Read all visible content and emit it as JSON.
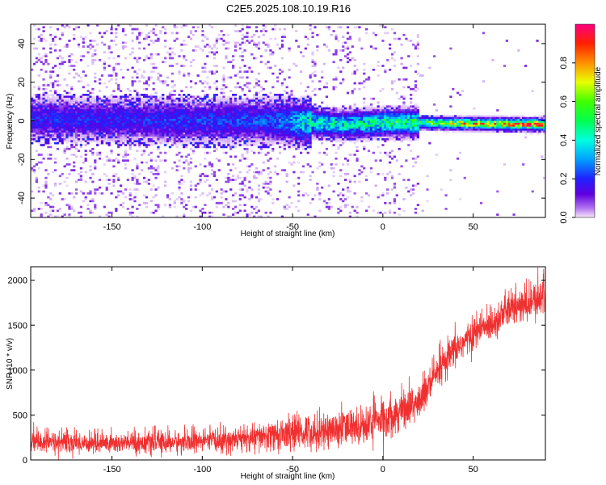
{
  "title": "C2E5.2025.108.10.19.R16",
  "colors": {
    "snr_line": "#f03030",
    "spectrogram_background": "#ffffff"
  },
  "chart_data": [
    {
      "type": "heatmap",
      "xlabel": "Height of straight line (km)",
      "ylabel": "Frequency (Hz)",
      "xlim": [
        -195,
        90
      ],
      "ylim": [
        -50,
        50
      ],
      "xticks": [
        -150,
        -100,
        -50,
        0,
        50
      ],
      "xtick_labels": [
        "-150",
        "-100",
        "-50",
        "0",
        "50"
      ],
      "yticks": [
        -40,
        -20,
        0,
        20,
        40
      ],
      "ytick_labels": [
        "-40",
        "-20",
        "0",
        "20",
        "40"
      ],
      "colormap": "rainbow (violet to red)",
      "colorbar": {
        "label": "Normalized spectral amplitude",
        "range": [
          0.0,
          1.0
        ],
        "ticks": [
          0.0,
          0.2,
          0.4,
          0.6,
          0.8
        ],
        "tick_labels": [
          "0.0",
          "0.2",
          "0.4",
          "0.6",
          "0.8"
        ]
      },
      "centre_frequency_trend": [
        {
          "x": -195,
          "f": 1.0,
          "amp": 0.2
        },
        {
          "x": -150,
          "f": 0.5,
          "amp": 0.2
        },
        {
          "x": -100,
          "f": 0.0,
          "amp": 0.22
        },
        {
          "x": -60,
          "f": 0.0,
          "amp": 0.25
        },
        {
          "x": -40,
          "f": -1.0,
          "amp": 0.45
        },
        {
          "x": -20,
          "f": -2.0,
          "amp": 0.45
        },
        {
          "x": 0,
          "f": -1.0,
          "amp": 0.5
        },
        {
          "x": 20,
          "f": -1.0,
          "amp": 0.55
        },
        {
          "x": 50,
          "f": -1.5,
          "amp": 0.75
        },
        {
          "x": 90,
          "f": -2.0,
          "amp": 0.95
        }
      ]
    },
    {
      "type": "line",
      "xlabel": "Height of straight line (km)",
      "ylabel": "SNR (10 * v/v)",
      "xlim": [
        -195,
        90
      ],
      "ylim": [
        0,
        2150
      ],
      "xticks": [
        -150,
        -100,
        -50,
        0,
        50
      ],
      "xtick_labels": [
        "-150",
        "-100",
        "-50",
        "0",
        "50"
      ],
      "yticks": [
        0,
        500,
        1000,
        1500,
        2000
      ],
      "ytick_labels": [
        "0",
        "500",
        "1000",
        "1500",
        "2000"
      ],
      "series": [
        {
          "envelope": [
            {
              "x": -195,
              "low": 50,
              "high": 350
            },
            {
              "x": -150,
              "low": 50,
              "high": 320
            },
            {
              "x": -100,
              "low": 60,
              "high": 340
            },
            {
              "x": -70,
              "low": 70,
              "high": 420
            },
            {
              "x": -50,
              "low": 80,
              "high": 520
            },
            {
              "x": -30,
              "low": 100,
              "high": 560
            },
            {
              "x": -10,
              "low": 150,
              "high": 620
            },
            {
              "x": 0,
              "low": 200,
              "high": 720
            },
            {
              "x": 10,
              "low": 300,
              "high": 800
            },
            {
              "x": 20,
              "low": 380,
              "high": 900
            },
            {
              "x": 30,
              "low": 700,
              "high": 1200
            },
            {
              "x": 40,
              "low": 1000,
              "high": 1450
            },
            {
              "x": 50,
              "low": 1200,
              "high": 1600
            },
            {
              "x": 60,
              "low": 1300,
              "high": 1750
            },
            {
              "x": 70,
              "low": 1450,
              "high": 1900
            },
            {
              "x": 80,
              "low": 1500,
              "high": 1950
            },
            {
              "x": 90,
              "low": 1550,
              "high": 2100
            }
          ]
        }
      ]
    }
  ]
}
